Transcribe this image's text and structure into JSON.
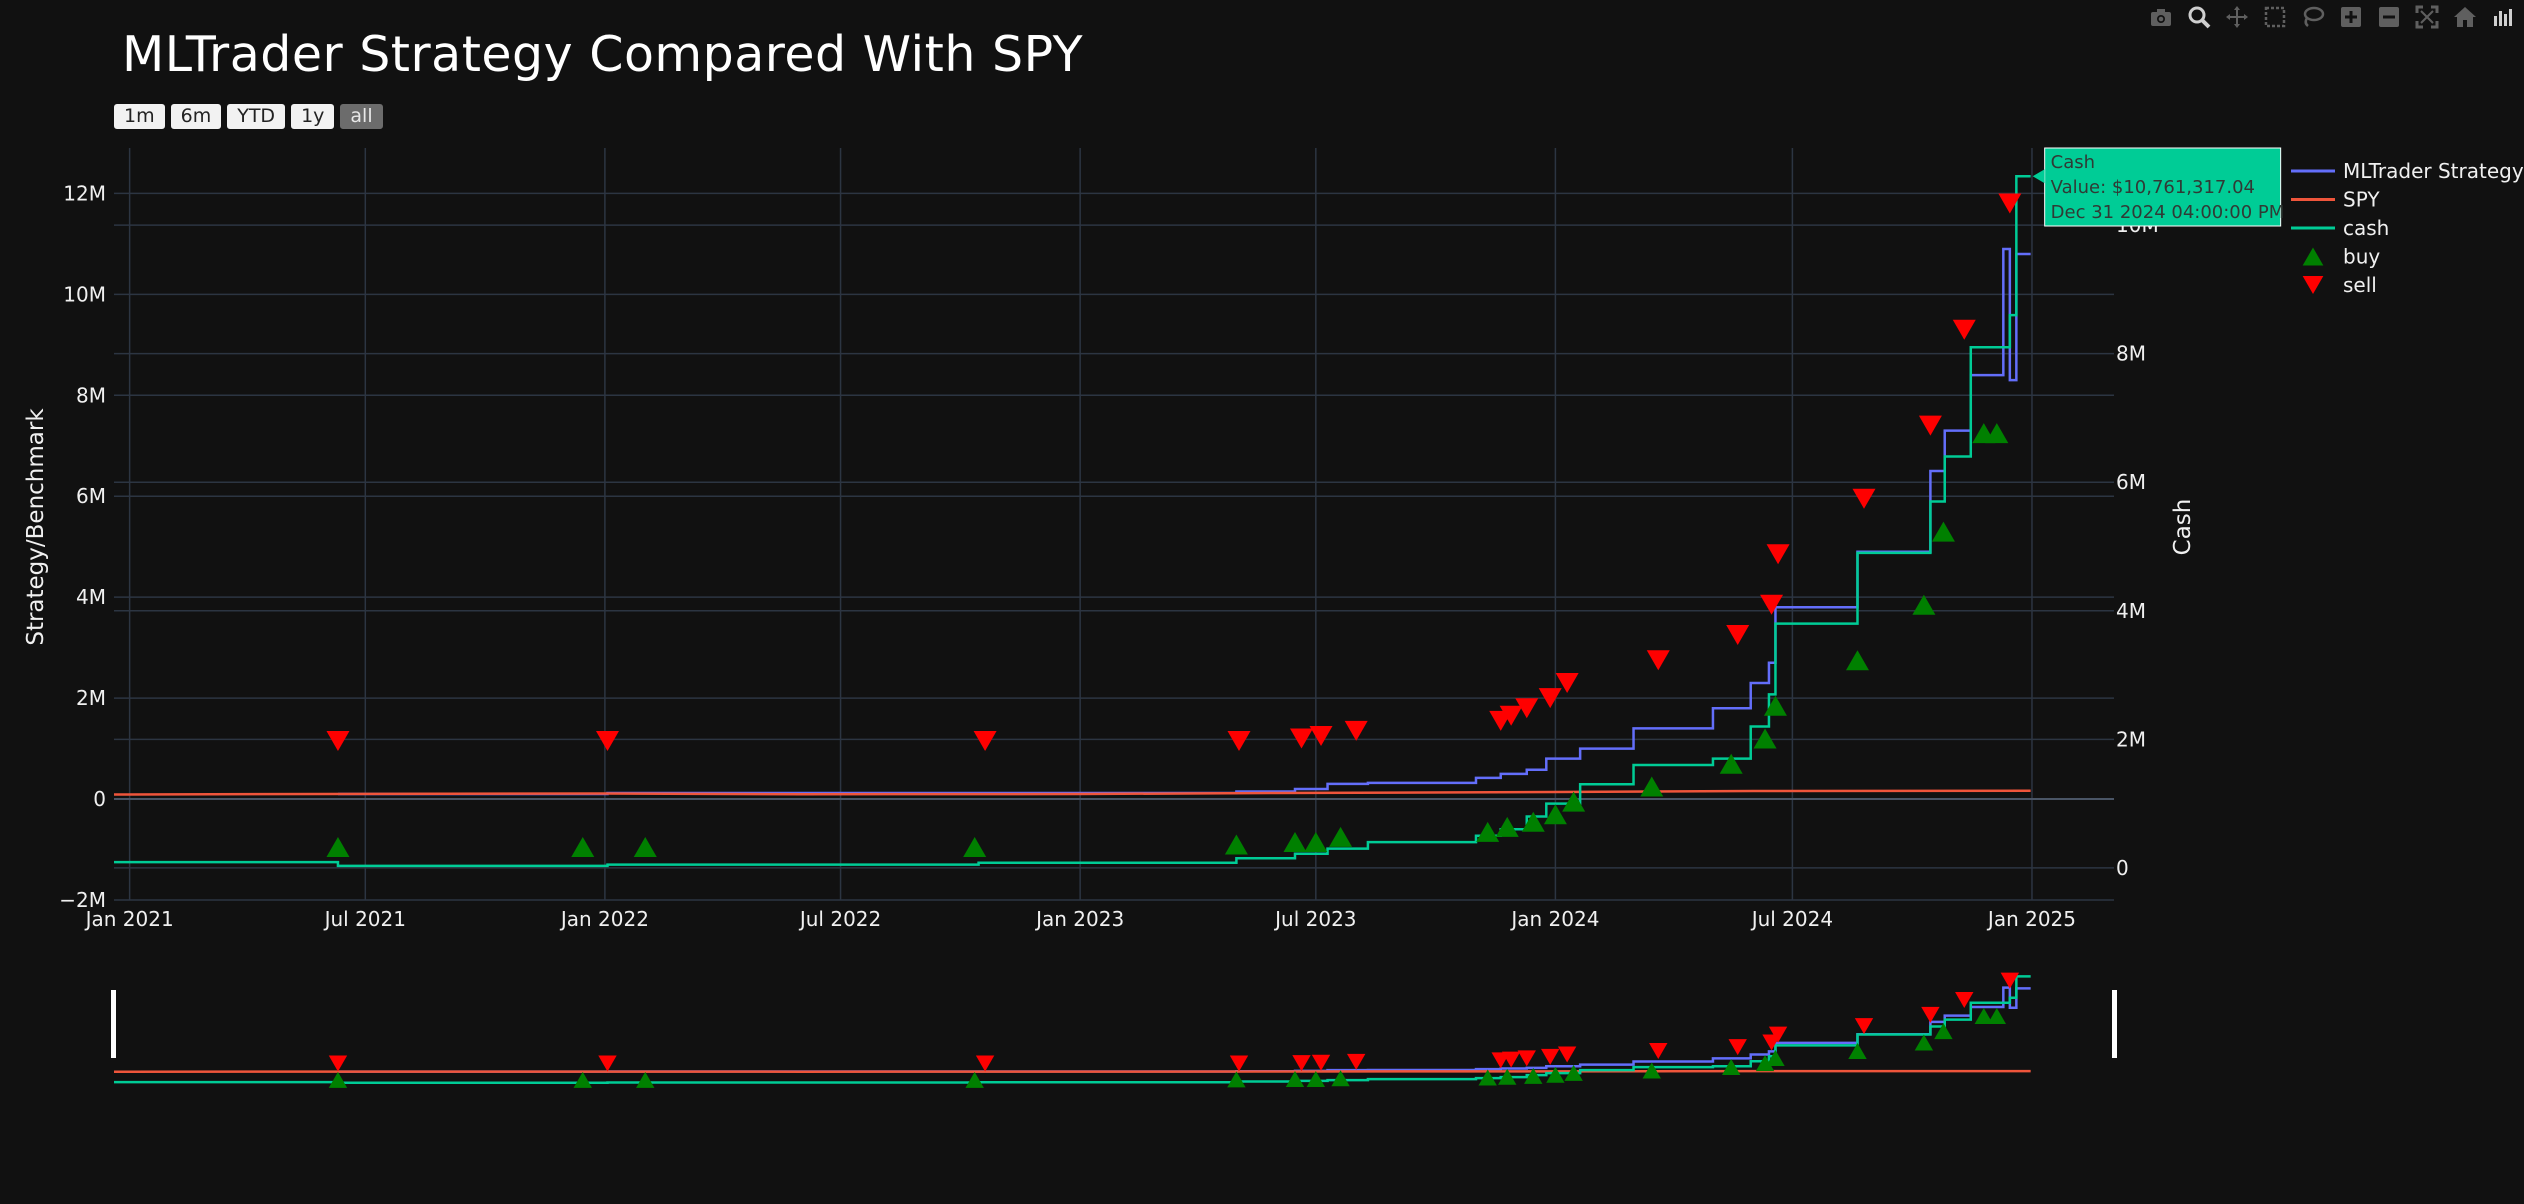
{
  "modebar": {
    "icons": [
      "camera-icon",
      "zoom-icon",
      "pan-icon",
      "box-select-icon",
      "lasso-select-icon",
      "zoom-in-icon",
      "zoom-out-icon",
      "autoscale-icon",
      "reset-axes-icon",
      "plotly-logo-icon"
    ]
  },
  "range_selector": {
    "buttons": [
      "1m",
      "6m",
      "YTD",
      "1y",
      "all"
    ],
    "active": "all"
  },
  "colors": {
    "background": "#111111",
    "grid": "#2c3542",
    "strategy": "#636efa",
    "spy": "#ef553b",
    "cash": "#00cc96",
    "buy": "#008000",
    "sell": "#ff0000"
  },
  "chart_data": {
    "type": "line",
    "title": "MLTrader Strategy Compared With SPY",
    "ylabel": "Strategy/Benchmark",
    "y2label": "Cash",
    "xlim": [
      "2020-12-20",
      "2025-03-05"
    ],
    "ylim": [
      -2000000,
      12900000
    ],
    "y2lim": [
      -500000,
      11200000
    ],
    "grid": true,
    "legend_position": "top-right",
    "x_ticks": [
      "Jan 2021",
      "Jul 2021",
      "Jan 2022",
      "Jul 2022",
      "Jan 2023",
      "Jul 2023",
      "Jan 2024",
      "Jul 2024",
      "Jan 2025"
    ],
    "x_tick_dates": [
      "2021-01-01",
      "2021-07-01",
      "2022-01-01",
      "2022-07-01",
      "2023-01-01",
      "2023-07-01",
      "2024-01-01",
      "2024-07-01",
      "2025-01-01"
    ],
    "y_ticks": [
      -2000000,
      0,
      2000000,
      4000000,
      6000000,
      8000000,
      10000000,
      12000000
    ],
    "y_tick_labels": [
      "−2M",
      "0",
      "2M",
      "4M",
      "6M",
      "8M",
      "10M",
      "12M"
    ],
    "y2_ticks": [
      0,
      2000000,
      4000000,
      6000000,
      8000000,
      10000000
    ],
    "y2_tick_labels": [
      "0",
      "2M",
      "4M",
      "6M",
      "8M",
      "10M"
    ],
    "series": [
      {
        "name": "MLTrader Strategy",
        "axis": "y",
        "shape": "step",
        "x": [
          "2021-06-10",
          "2022-01-03",
          "2023-05-01",
          "2023-06-15",
          "2023-07-10",
          "2023-08-10",
          "2023-11-01",
          "2023-11-20",
          "2023-12-10",
          "2023-12-25",
          "2024-01-20",
          "2024-03-01",
          "2024-05-01",
          "2024-05-30",
          "2024-06-13",
          "2024-06-18",
          "2024-08-20",
          "2024-10-15",
          "2024-10-26",
          "2024-11-15",
          "2024-11-25",
          "2024-12-10",
          "2024-12-15",
          "2024-12-20",
          "2024-12-31"
        ],
        "y": [
          100000,
          120000,
          150000,
          200000,
          300000,
          320000,
          420000,
          500000,
          580000,
          800000,
          1000000,
          1400000,
          1800000,
          2300000,
          2700000,
          3800000,
          4900000,
          6500000,
          7300000,
          8400000,
          8400000,
          10900000,
          8300000,
          10800000,
          10800000
        ]
      },
      {
        "name": "SPY",
        "axis": "y",
        "shape": "linear",
        "x": [
          "2020-12-20",
          "2021-06-01",
          "2022-01-01",
          "2022-06-01",
          "2023-01-01",
          "2023-06-01",
          "2024-01-01",
          "2024-06-01",
          "2024-12-31"
        ],
        "y": [
          90000,
          100000,
          110000,
          95000,
          100000,
          120000,
          140000,
          160000,
          165000
        ]
      },
      {
        "name": "cash",
        "axis": "y2",
        "shape": "step",
        "x": [
          "2020-12-20",
          "2021-06-10",
          "2022-01-03",
          "2022-10-15",
          "2023-05-01",
          "2023-06-15",
          "2023-07-10",
          "2023-08-10",
          "2023-11-01",
          "2023-11-20",
          "2023-12-10",
          "2023-12-25",
          "2024-01-20",
          "2024-03-01",
          "2024-05-01",
          "2024-05-30",
          "2024-06-13",
          "2024-06-18",
          "2024-08-20",
          "2024-10-15",
          "2024-10-26",
          "2024-11-15",
          "2024-11-25",
          "2024-12-10",
          "2024-12-15",
          "2024-12-20",
          "2024-12-31"
        ],
        "y": [
          90000,
          30000,
          50000,
          80000,
          150000,
          220000,
          300000,
          400000,
          500000,
          600000,
          800000,
          1000000,
          1300000,
          1600000,
          1700000,
          2200000,
          2700000,
          3800000,
          4900000,
          5700000,
          6400000,
          8100000,
          8100000,
          8100000,
          8600000,
          10761317.04,
          10761317.04
        ]
      },
      {
        "name": "buy",
        "axis": "y",
        "shape": "markers",
        "marker": "triangle-up",
        "x": [
          "2021-06-10",
          "2021-12-15",
          "2022-02-01",
          "2022-10-12",
          "2023-05-01",
          "2023-06-15",
          "2023-07-01",
          "2023-07-20",
          "2023-11-10",
          "2023-11-25",
          "2023-12-15",
          "2024-01-01",
          "2024-01-15",
          "2024-03-15",
          "2024-05-15",
          "2024-06-10",
          "2024-06-18",
          "2024-08-20",
          "2024-10-10",
          "2024-10-25",
          "2024-11-25",
          "2024-12-05"
        ],
        "y": [
          -950000,
          -950000,
          -950000,
          -950000,
          -900000,
          -850000,
          -850000,
          -750000,
          -650000,
          -550000,
          -450000,
          -300000,
          -50000,
          250000,
          700000,
          1200000,
          1850000,
          2750000,
          3850000,
          5300000,
          7250000,
          7250000
        ]
      },
      {
        "name": "sell",
        "axis": "y",
        "shape": "markers",
        "marker": "triangle-down",
        "x": [
          "2021-06-10",
          "2022-01-03",
          "2022-10-20",
          "2023-05-03",
          "2023-06-20",
          "2023-07-05",
          "2023-08-01",
          "2023-11-20",
          "2023-11-28",
          "2023-12-10",
          "2023-12-28",
          "2024-01-10",
          "2024-03-20",
          "2024-05-20",
          "2024-06-15",
          "2024-06-20",
          "2024-08-25",
          "2024-10-15",
          "2024-11-10",
          "2024-12-15"
        ],
        "y": [
          1150000,
          1150000,
          1150000,
          1150000,
          1200000,
          1250000,
          1350000,
          1550000,
          1650000,
          1800000,
          2000000,
          2300000,
          2750000,
          3250000,
          3850000,
          4850000,
          5950000,
          7400000,
          9300000,
          11800000
        ]
      }
    ],
    "hover": {
      "label": "Cash",
      "value_text": "Value: $10,761,317.04",
      "date_text": "Dec 31 2024 04:00:00 PM"
    }
  }
}
